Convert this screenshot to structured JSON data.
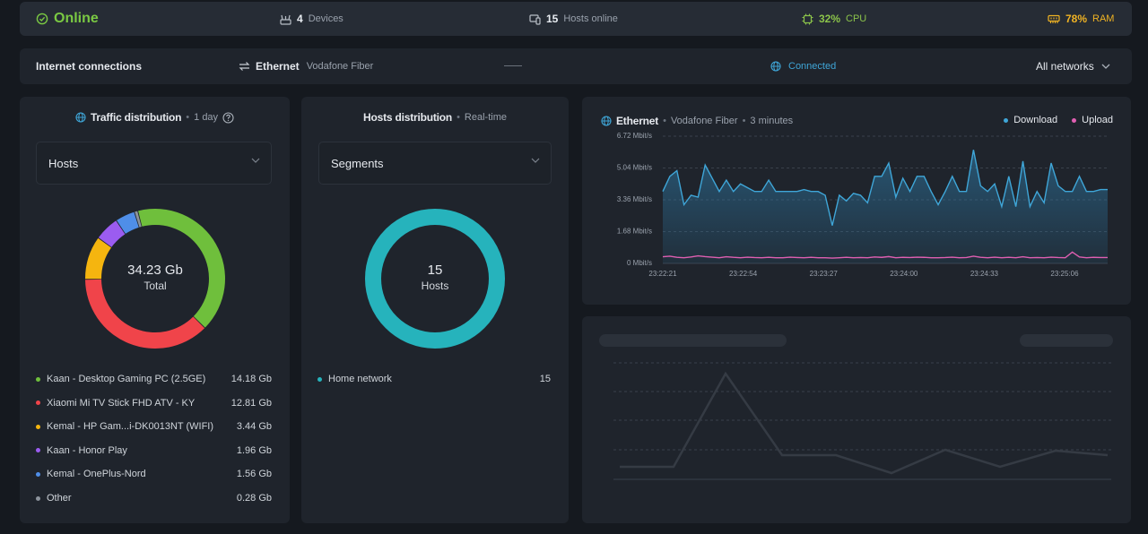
{
  "status": {
    "online_label": "Online",
    "devices_count": "4",
    "devices_label": "Devices",
    "hosts_count": "15",
    "hosts_label": "Hosts online",
    "cpu_value": "32%",
    "cpu_label": "CPU",
    "ram_value": "78%",
    "ram_label": "RAM",
    "colors": {
      "online": "#7ac943",
      "cpu": "#8bc34a",
      "ram": "#f0b323"
    }
  },
  "connection": {
    "title": "Internet connections",
    "type": "Ethernet",
    "provider": "Vodafone Fiber",
    "state": "Connected",
    "filter": "All networks"
  },
  "traffic": {
    "title": "Traffic distribution",
    "period": "1 day",
    "select_value": "Hosts",
    "donut_value": "34.23 Gb",
    "donut_label": "Total",
    "items": [
      {
        "name": "Kaan - Desktop Gaming PC (2.5GE)",
        "value": "14.18 Gb",
        "amount": 14.18,
        "color": "#6fbf3c"
      },
      {
        "name": "Xiaomi Mi TV Stick FHD ATV - KY",
        "value": "12.81 Gb",
        "amount": 12.81,
        "color": "#f0444a"
      },
      {
        "name": "Kemal - HP Gam...i-DK0013NT (WIFI)",
        "value": "3.44 Gb",
        "amount": 3.44,
        "color": "#f5b50f"
      },
      {
        "name": "Kaan - Honor Play",
        "value": "1.96 Gb",
        "amount": 1.96,
        "color": "#9b5cf0"
      },
      {
        "name": "Kemal - OnePlus-Nord",
        "value": "1.56 Gb",
        "amount": 1.56,
        "color": "#4f8ee8"
      },
      {
        "name": "Other",
        "value": "0.28 Gb",
        "amount": 0.28,
        "color": "#8c939c"
      }
    ]
  },
  "hosts": {
    "title": "Hosts distribution",
    "period": "Real-time",
    "select_value": "Segments",
    "donut_value": "15",
    "donut_label": "Hosts",
    "items": [
      {
        "name": "Home network",
        "value": "15",
        "color": "#26b3bc"
      }
    ]
  },
  "ethernet_chart": {
    "title": "Ethernet",
    "provider": "Vodafone Fiber",
    "period": "3 minutes",
    "legend": [
      {
        "name": "Download",
        "color": "#3fa6d8"
      },
      {
        "name": "Upload",
        "color": "#e05fb2"
      }
    ]
  },
  "chart_data": {
    "type": "area",
    "title": "",
    "xlabel": "",
    "ylabel": "",
    "y_ticks": [
      "6.72 Mbit/s",
      "5.04 Mbit/s",
      "3.36 Mbit/s",
      "1.68 Mbit/s",
      "0 Mbit/s"
    ],
    "y_tick_values": [
      6.72,
      5.04,
      3.36,
      1.68,
      0
    ],
    "ylim": [
      0,
      6.72
    ],
    "x_ticks": [
      "23:22:21",
      "23:22:54",
      "23:23:27",
      "23:24:00",
      "23:24:33",
      "23:25:06"
    ],
    "grid": true,
    "legend_position": "top-right",
    "series": [
      {
        "name": "Download",
        "values": [
          3.8,
          4.6,
          4.9,
          3.1,
          3.6,
          3.5,
          5.2,
          4.5,
          3.8,
          4.4,
          3.8,
          4.2,
          4.0,
          3.8,
          3.8,
          4.4,
          3.8,
          3.8,
          3.8,
          3.8,
          3.9,
          3.8,
          3.8,
          3.6,
          2.0,
          3.6,
          3.3,
          3.7,
          3.6,
          3.2,
          4.6,
          4.6,
          5.3,
          3.5,
          4.5,
          3.8,
          4.6,
          4.6,
          3.8,
          3.1,
          3.8,
          4.6,
          3.8,
          3.8,
          6.0,
          4.1,
          3.8,
          4.2,
          3.0,
          4.6,
          3.0,
          5.4,
          3.0,
          3.8,
          3.2,
          5.3,
          4.1,
          3.8,
          3.8,
          4.6,
          3.8,
          3.8,
          3.9,
          3.9
        ]
      },
      {
        "name": "Upload",
        "values": [
          0.35,
          0.38,
          0.32,
          0.3,
          0.34,
          0.4,
          0.36,
          0.33,
          0.3,
          0.35,
          0.32,
          0.3,
          0.33,
          0.31,
          0.3,
          0.32,
          0.3,
          0.3,
          0.33,
          0.31,
          0.3,
          0.32,
          0.3,
          0.3,
          0.28,
          0.3,
          0.32,
          0.3,
          0.31,
          0.3,
          0.34,
          0.32,
          0.36,
          0.3,
          0.32,
          0.31,
          0.33,
          0.32,
          0.3,
          0.3,
          0.31,
          0.33,
          0.3,
          0.31,
          0.38,
          0.32,
          0.3,
          0.33,
          0.3,
          0.32,
          0.3,
          0.35,
          0.3,
          0.31,
          0.3,
          0.33,
          0.31,
          0.3,
          0.6,
          0.34,
          0.3,
          0.32,
          0.31,
          0.31
        ]
      }
    ]
  }
}
